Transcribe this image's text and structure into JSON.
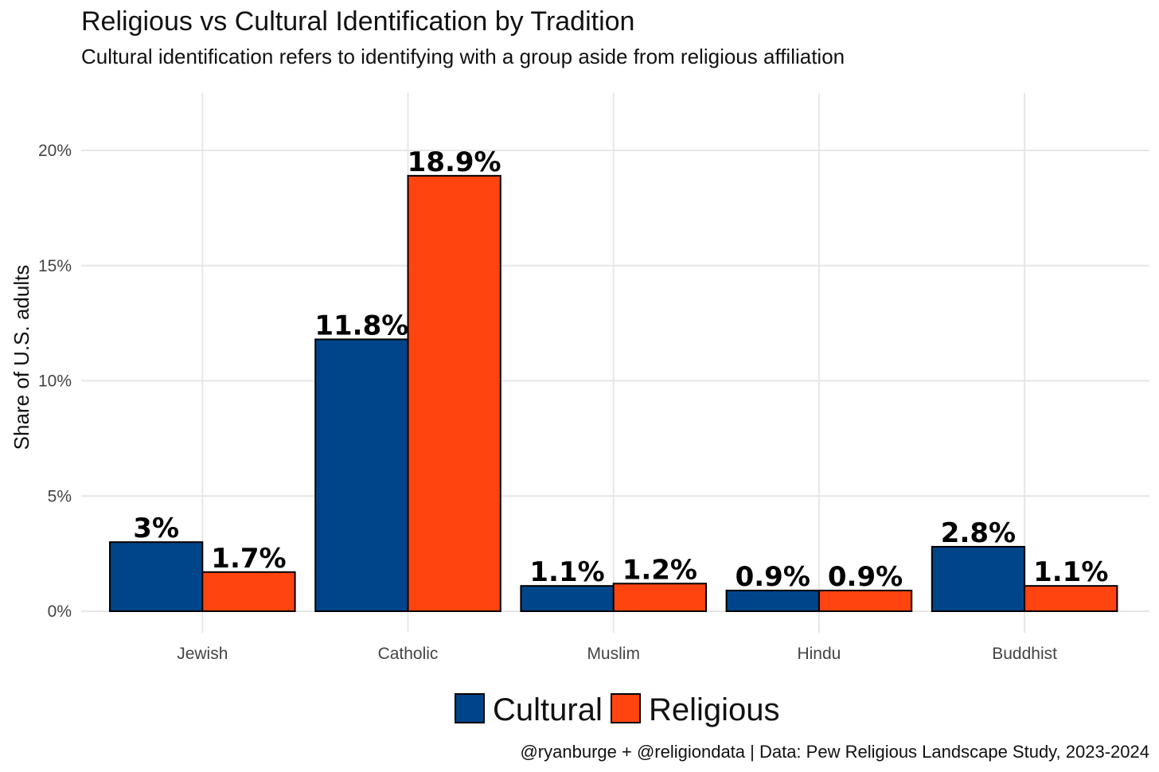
{
  "chart_data": {
    "type": "bar",
    "title": "Religious vs Cultural Identification by Tradition",
    "subtitle": "Cultural identification refers to identifying with a group aside from religious affiliation",
    "ylabel": "Share of U.S. adults",
    "xlabel": "",
    "ylim": [
      0,
      22.5
    ],
    "yticks": [
      0,
      5,
      10,
      15,
      20
    ],
    "ytick_labels": [
      "0%",
      "5%",
      "10%",
      "15%",
      "20%"
    ],
    "categories": [
      "Jewish",
      "Catholic",
      "Muslim",
      "Hindu",
      "Buddhist"
    ],
    "series": [
      {
        "name": "Cultural",
        "color": "#00458a",
        "values": [
          3.0,
          11.8,
          1.1,
          0.9,
          2.8
        ],
        "labels": [
          "3%",
          "11.8%",
          "1.1%",
          "0.9%",
          "2.8%"
        ]
      },
      {
        "name": "Religious",
        "color": "#ff4410",
        "values": [
          1.7,
          18.9,
          1.2,
          0.9,
          1.1
        ],
        "labels": [
          "1.7%",
          "18.9%",
          "1.2%",
          "0.9%",
          "1.1%"
        ]
      }
    ],
    "grid": true,
    "legend_position": "bottom",
    "caption": "@ryanburge + @religiondata | Data: Pew Religious Landscape Study, 2023-2024"
  }
}
